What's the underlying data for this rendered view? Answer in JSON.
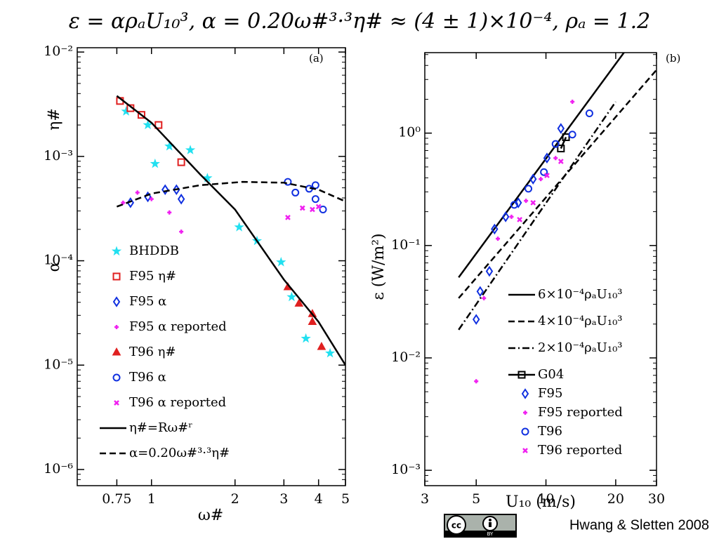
{
  "title": "ε = αρₐU₁₀³,  α = 0.20ω#³·³η# ≈ (4 ± 1)×10⁻⁴, ρₐ = 1.2",
  "credit": "Hwang & Sletten 2008",
  "chart_data": [
    {
      "type": "scatter",
      "panel_label": "(a)",
      "xlabel": "ω#",
      "ylabel": "α",
      "ylabel2": "η#",
      "log_x": true,
      "log_y": true,
      "xlim": [
        0.54,
        5
      ],
      "ylim": [
        7e-07,
        0.011
      ],
      "xticks": [
        0.75,
        1,
        2,
        3,
        4,
        5
      ],
      "yticks": [
        {
          "value": 0.01,
          "label": "10⁻²"
        },
        {
          "value": 0.001,
          "label": "10⁻³"
        },
        {
          "value": 0.0001,
          "label": "10⁻⁴"
        },
        {
          "value": 1e-05,
          "label": "10⁻⁵"
        },
        {
          "value": 1e-06,
          "label": "10⁻⁶"
        }
      ],
      "series": [
        {
          "name": "BHDDB",
          "marker": "star",
          "color": "#22e0f0",
          "x": [
            0.81,
            0.97,
            1.03,
            1.16,
            1.38,
            1.59,
            2.07,
            2.4,
            2.93,
            3.2,
            3.6,
            4.4
          ],
          "values": [
            0.0027,
            0.002,
            0.00085,
            0.00125,
            0.00115,
            0.00062,
            0.00021,
            0.000155,
            9.7e-05,
            4.5e-05,
            1.8e-05,
            1.3e-05
          ]
        },
        {
          "name": "F95 η#",
          "marker": "square",
          "color": "#e02020",
          "x": [
            0.77,
            0.84,
            0.92,
            1.06,
            1.28
          ],
          "values": [
            0.0034,
            0.0029,
            0.0025,
            0.002,
            0.00088
          ]
        },
        {
          "name": "F95 α",
          "marker": "diamond",
          "color": "#1030e0",
          "x": [
            0.84,
            0.97,
            1.12,
            1.23,
            1.28
          ],
          "values": [
            0.00036,
            0.00041,
            0.00048,
            0.00048,
            0.00039
          ]
        },
        {
          "name": "F95 α reported",
          "marker": "plus",
          "color": "#f020f0",
          "x": [
            0.79,
            0.89,
            1,
            1.16,
            1.28
          ],
          "values": [
            0.00036,
            0.00045,
            0.00039,
            0.00029,
            0.00019
          ]
        },
        {
          "name": "T96 η#",
          "marker": "triangle",
          "color": "#e02020",
          "x": [
            3.1,
            3.4,
            3.8,
            3.8,
            4.1
          ],
          "values": [
            5.6e-05,
            3.9e-05,
            3.1e-05,
            2.6e-05,
            1.5e-05
          ]
        },
        {
          "name": "T96 α",
          "marker": "circle",
          "color": "#1030e0",
          "x": [
            3.1,
            3.3,
            3.7,
            3.9,
            4.15,
            3.9
          ],
          "values": [
            0.00057,
            0.00045,
            0.00049,
            0.00053,
            0.00031,
            0.00039
          ]
        },
        {
          "name": "T96 α reported",
          "marker": "cross",
          "color": "#f020f0",
          "x": [
            3.1,
            3.5,
            3.8,
            4
          ],
          "values": [
            0.00026,
            0.00032,
            0.00031,
            0.00033
          ]
        },
        {
          "name": "η#=Rω#ʳ",
          "marker": "none",
          "line": "solid",
          "color": "#000000",
          "x": [
            0.75,
            1,
            1.5,
            2,
            3,
            4,
            5
          ],
          "values": [
            0.0038,
            0.0021,
            0.00067,
            0.00031,
            6.6e-05,
            2.6e-05,
            1e-05
          ]
        },
        {
          "name": "α=0.20ω#³·³η#",
          "marker": "none",
          "line": "dashed",
          "color": "#000000",
          "x": [
            0.75,
            1,
            1.5,
            2.13,
            3,
            4,
            5
          ],
          "values": [
            0.00033,
            0.00044,
            0.00053,
            0.00057,
            0.00056,
            0.00048,
            0.00037
          ]
        }
      ]
    },
    {
      "type": "scatter",
      "panel_label": "(b)",
      "xlabel": "U₁₀ (m/s)",
      "ylabel": "ε (W/m²)",
      "log_x": true,
      "log_y": true,
      "xlim": [
        3,
        30
      ],
      "ylim": [
        0.00073,
        5.2
      ],
      "xticks": [
        3,
        5,
        10,
        20,
        30
      ],
      "yticks": [
        {
          "value": 1,
          "label": "10⁰"
        },
        {
          "value": 0.1,
          "label": "10⁻¹"
        },
        {
          "value": 0.01,
          "label": "10⁻²"
        },
        {
          "value": 0.001,
          "label": "10⁻³"
        }
      ],
      "series": [
        {
          "name": "6×10⁻⁴ρₐU₁₀³",
          "marker": "none",
          "line": "solid",
          "color": "#000000",
          "x": [
            4.2,
            21.7
          ],
          "values": [
            0.052,
            5.2
          ]
        },
        {
          "name": "4×10⁻⁴ρₐU₁₀³",
          "marker": "none",
          "line": "dashed",
          "color": "#000000",
          "x": [
            4.2,
            30
          ],
          "values": [
            0.034,
            3.65
          ]
        },
        {
          "name": "2×10⁻⁴ρₐU₁₀³",
          "marker": "none",
          "line": "dashdot",
          "color": "#000000",
          "x": [
            4.2,
            20
          ],
          "values": [
            0.0178,
            1.9
          ]
        },
        {
          "name": "G04",
          "marker": "square",
          "line": "solid",
          "color": "#000000",
          "x": [
            11.6,
            12.2
          ],
          "values": [
            0.73,
            0.92
          ]
        },
        {
          "name": "F95",
          "marker": "diamond",
          "color": "#1030e0",
          "x": [
            5,
            5.2,
            5.7,
            6,
            6.7,
            7.6,
            8.8,
            10.1,
            11.6
          ],
          "values": [
            0.022,
            0.039,
            0.059,
            0.14,
            0.18,
            0.24,
            0.39,
            0.6,
            1.1
          ]
        },
        {
          "name": "F95 reported",
          "marker": "plus",
          "color": "#f020f0",
          "x": [
            5,
            5.4,
            6.2,
            7.1,
            8.2,
            9.5,
            11,
            13
          ],
          "values": [
            0.0062,
            0.034,
            0.115,
            0.18,
            0.25,
            0.39,
            0.6,
            1.9
          ]
        },
        {
          "name": "T96",
          "marker": "circle",
          "color": "#1030e0",
          "x": [
            7.3,
            8.4,
            9.8,
            11,
            13,
            15.4
          ],
          "values": [
            0.23,
            0.32,
            0.45,
            0.8,
            0.97,
            1.5
          ]
        },
        {
          "name": "T96 reported",
          "marker": "cross",
          "color": "#f020f0",
          "x": [
            7.7,
            8.8,
            10.1,
            11.6
          ],
          "values": [
            0.17,
            0.24,
            0.42,
            0.56
          ]
        }
      ]
    }
  ]
}
